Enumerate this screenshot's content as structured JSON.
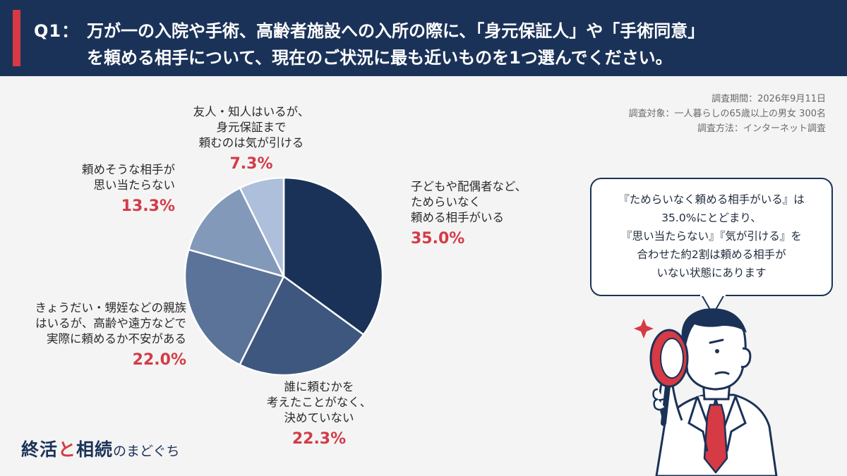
{
  "header": {
    "qno": "Q1：",
    "line1": "万が一の入院や手術、高齢者施設への入所の際に、「身元保証人」や「手術同意」",
    "line2": "を頼める相手について、現在のご状況に最も近いものを1つ選んでください。"
  },
  "meta": {
    "period": "調査期間：2026年9月11日",
    "target": "調査対象：一人暮らしの65歳以上の男女  300名",
    "method": "調査方法：インターネット調査"
  },
  "chart_data": {
    "type": "pie",
    "slices": [
      {
        "lines": [
          "子どもや配偶者など、",
          "ためらいなく",
          "頼める相手がいる"
        ],
        "pct_label": "35.0%",
        "value": 35.0,
        "color": "#1b3258"
      },
      {
        "lines": [
          "誰に頼むかを",
          "考えたことがなく、",
          "決めていない"
        ],
        "pct_label": "22.3%",
        "value": 22.3,
        "color": "#3d577f"
      },
      {
        "lines": [
          "きょうだい・甥姪などの親族",
          "はいるが、高齢や遠方などで",
          "実際に頼めるか不安がある"
        ],
        "pct_label": "22.0%",
        "value": 22.0,
        "color": "#5b7399"
      },
      {
        "lines": [
          "頼めそうな相手が",
          "思い当たらない"
        ],
        "pct_label": "13.3%",
        "value": 13.3,
        "color": "#8399b9"
      },
      {
        "lines": [
          "友人・知人はいるが、",
          "身元保証まで",
          "頼むのは気が引ける"
        ],
        "pct_label": "7.3%",
        "value": 7.3,
        "color": "#aebfdb"
      }
    ],
    "start_angle_deg": 0,
    "direction": "clockwise"
  },
  "bubble": {
    "lines": [
      "『ためらいなく頼める相手がいる』は",
      "35.0%にとどまり、",
      "『思い当たらない』『気が引ける』を",
      "合わせた約2割は頼める相手が",
      "いない状態にあります"
    ]
  },
  "logo": {
    "part1": "終活",
    "amp": "と",
    "part2": "相続",
    "suffix": "のまどぐち"
  },
  "colors": {
    "header_bg": "#1b3258",
    "accent": "#d63a44",
    "pct_text": "#d23c48"
  },
  "icons": [
    "magnifier-icon",
    "sparkle-icon",
    "person-illustration"
  ]
}
